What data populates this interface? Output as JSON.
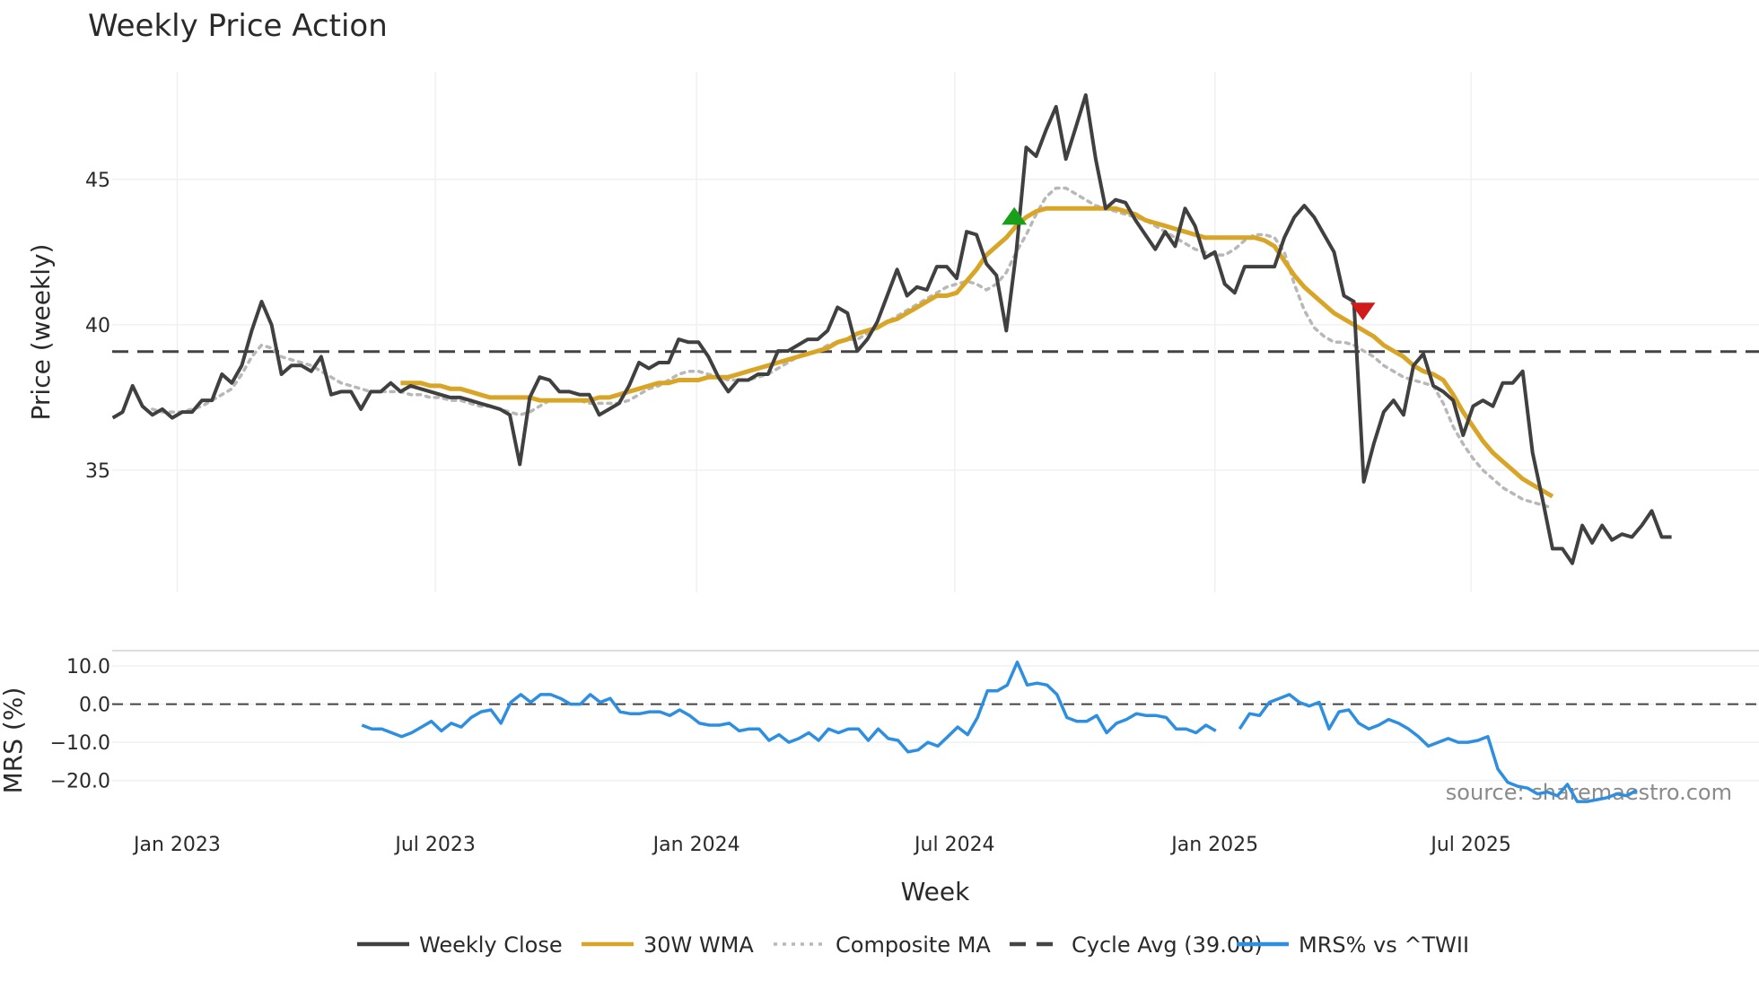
{
  "chart_data": [
    {
      "type": "line",
      "title": "Weekly Price Action",
      "xlabel": "Week",
      "ylabel": "Price (weekly)",
      "ylim": [
        30.8,
        48.7
      ],
      "yticks": [
        35,
        40,
        45
      ],
      "xticks": [
        {
          "label": "Jan 2023",
          "week": 4
        },
        {
          "label": "Jul 2023",
          "week": 30
        },
        {
          "label": "Jan 2024",
          "week": 56.3
        },
        {
          "label": "Jul 2024",
          "week": 82.3
        },
        {
          "label": "Jan 2025",
          "week": 108.5
        },
        {
          "label": "Jul 2025",
          "week": 134.3
        }
      ],
      "xlim": [
        -2.55,
        163.3
      ],
      "reference_line": {
        "name": "Cycle Avg (39.08)",
        "value": 39.08
      },
      "markers": [
        {
          "name": "buy-signal",
          "week": 88.3,
          "value": 43.7,
          "shape": "triangle-up",
          "color": "#1a9f1a"
        },
        {
          "name": "sell-signal",
          "week": 123.4,
          "value": 40.5,
          "shape": "triangle-down",
          "color": "#d11a1a"
        }
      ],
      "series": [
        {
          "name": "Weekly Close",
          "color": "#404040",
          "style": "solid",
          "x_start": -2.5,
          "values": [
            36.8,
            37.0,
            37.9,
            37.2,
            36.9,
            37.1,
            36.8,
            37.0,
            37.0,
            37.4,
            37.4,
            38.3,
            38.0,
            38.6,
            39.8,
            40.8,
            40.0,
            38.3,
            38.6,
            38.6,
            38.4,
            38.9,
            37.6,
            37.7,
            37.7,
            37.1,
            37.7,
            37.7,
            38.0,
            37.7,
            37.9,
            37.8,
            37.7,
            37.6,
            37.5,
            37.5,
            37.4,
            37.3,
            37.2,
            37.1,
            36.9,
            35.2,
            37.5,
            38.2,
            38.1,
            37.7,
            37.7,
            37.6,
            37.6,
            36.9,
            37.1,
            37.3,
            37.9,
            38.7,
            38.5,
            38.7,
            38.7,
            39.5,
            39.4,
            39.4,
            38.9,
            38.2,
            37.7,
            38.1,
            38.1,
            38.3,
            38.3,
            39.1,
            39.1,
            39.3,
            39.5,
            39.5,
            39.8,
            40.6,
            40.4,
            39.1,
            39.5,
            40.1,
            41.0,
            41.9,
            41.0,
            41.3,
            41.2,
            42.0,
            42.0,
            41.6,
            43.2,
            43.1,
            42.1,
            41.7,
            39.8,
            42.5,
            46.1,
            45.8,
            46.7,
            47.5,
            45.7,
            46.8,
            47.9,
            45.7,
            44.0,
            44.3,
            44.2,
            43.6,
            43.1,
            42.6,
            43.2,
            42.7,
            44.0,
            43.4,
            42.3,
            42.5,
            41.4,
            41.1,
            42.0,
            42.0,
            42.0,
            42.0,
            43.0,
            43.7,
            44.1,
            43.7,
            43.1,
            42.5,
            41.0,
            40.8,
            34.6,
            35.9,
            37.0,
            37.4,
            36.9,
            38.6,
            39.0,
            37.9,
            37.7,
            37.4,
            36.2,
            37.2,
            37.4,
            37.2,
            38.0,
            38.0,
            38.4,
            35.6,
            34.0,
            32.3,
            32.3,
            31.8,
            33.1,
            32.5,
            33.1,
            32.6,
            32.8,
            32.7,
            33.1,
            33.6,
            32.7,
            32.7
          ]
        },
        {
          "name": "30W WMA",
          "color": "#d8a527",
          "style": "solid",
          "x_start": 26.5,
          "values": [
            38.0,
            38.0,
            38.0,
            37.9,
            37.9,
            37.8,
            37.8,
            37.7,
            37.6,
            37.5,
            37.5,
            37.5,
            37.5,
            37.5,
            37.4,
            37.4,
            37.4,
            37.4,
            37.4,
            37.4,
            37.5,
            37.5,
            37.6,
            37.7,
            37.8,
            37.9,
            38.0,
            38.0,
            38.1,
            38.1,
            38.1,
            38.2,
            38.2,
            38.2,
            38.3,
            38.4,
            38.5,
            38.6,
            38.7,
            38.8,
            38.9,
            39.0,
            39.1,
            39.2,
            39.4,
            39.5,
            39.7,
            39.8,
            39.9,
            40.1,
            40.2,
            40.4,
            40.6,
            40.8,
            41.0,
            41.0,
            41.1,
            41.5,
            41.9,
            42.4,
            42.7,
            43.0,
            43.4,
            43.7,
            43.9,
            44.0,
            44.0,
            44.0,
            44.0,
            44.0,
            44.0,
            44.0,
            44.0,
            43.9,
            43.8,
            43.6,
            43.5,
            43.4,
            43.3,
            43.2,
            43.1,
            43.0,
            43.0,
            43.0,
            43.0,
            43.0,
            43.0,
            42.9,
            42.7,
            42.2,
            41.7,
            41.3,
            41.0,
            40.7,
            40.4,
            40.2,
            40.0,
            39.8,
            39.6,
            39.3,
            39.1,
            38.9,
            38.6,
            38.4,
            38.3,
            38.1,
            37.6,
            37.0,
            36.5,
            36.0,
            35.6,
            35.3,
            35.0,
            34.7,
            34.5,
            34.3,
            34.1
          ]
        },
        {
          "name": "Composite MA",
          "color": "#b8b8b8",
          "style": "dotted",
          "x_start": 1.5,
          "values": [
            37.1,
            37.0,
            37.0,
            37.0,
            37.1,
            37.2,
            37.4,
            37.6,
            37.8,
            38.3,
            38.9,
            39.3,
            39.2,
            38.9,
            38.8,
            38.7,
            38.6,
            38.4,
            38.2,
            38.0,
            37.9,
            37.8,
            37.7,
            37.7,
            37.7,
            37.7,
            37.6,
            37.6,
            37.5,
            37.5,
            37.4,
            37.4,
            37.3,
            37.2,
            37.2,
            37.1,
            37.0,
            36.9,
            37.0,
            37.2,
            37.4,
            37.4,
            37.4,
            37.4,
            37.3,
            37.3,
            37.3,
            37.3,
            37.4,
            37.6,
            37.8,
            37.9,
            38.1,
            38.3,
            38.4,
            38.4,
            38.3,
            38.2,
            38.1,
            38.1,
            38.1,
            38.2,
            38.3,
            38.5,
            38.7,
            38.9,
            39.0,
            39.1,
            39.3,
            39.4,
            39.5,
            39.5,
            39.7,
            39.9,
            40.1,
            40.3,
            40.5,
            40.7,
            40.9,
            41.1,
            41.3,
            41.4,
            41.5,
            41.4,
            41.2,
            41.4,
            41.8,
            42.5,
            43.1,
            43.8,
            44.4,
            44.7,
            44.7,
            44.5,
            44.3,
            44.1,
            44.0,
            43.9,
            43.8,
            43.7,
            43.6,
            43.4,
            43.2,
            43.0,
            42.8,
            42.6,
            42.5,
            42.4,
            42.4,
            42.6,
            42.9,
            43.1,
            43.1,
            43.0,
            42.5,
            41.4,
            40.5,
            39.9,
            39.6,
            39.4,
            39.4,
            39.3,
            39.1,
            38.9,
            38.6,
            38.4,
            38.2,
            38.1,
            38.0,
            37.9,
            37.3,
            36.5,
            35.9,
            35.4,
            35.0,
            34.7,
            34.4,
            34.2,
            34.0,
            33.9,
            33.8,
            33.7
          ]
        }
      ]
    },
    {
      "type": "line",
      "ylabel": "MRS (%)",
      "ylim": [
        -29,
        14
      ],
      "yticks": [
        {
          "value": 10,
          "label": "10.0"
        },
        {
          "value": 0,
          "label": "0.0"
        },
        {
          "value": -10,
          "label": "−10.0"
        },
        {
          "value": -20,
          "label": "−20.0"
        }
      ],
      "reference_line": {
        "value": 0
      },
      "series": [
        {
          "name": "MRS% vs ^TWII",
          "color": "#2e8fe0",
          "style": "solid",
          "segments": [
            {
              "x_start": 22.6,
              "values": [
                -5.5,
                -6.5,
                -6.5,
                -7.5,
                -8.5,
                -7.5,
                -6.0,
                -4.5,
                -7.0,
                -5.0,
                -6.0,
                -3.5,
                -2.0,
                -1.5,
                -5.0,
                0.5,
                2.5,
                0.5,
                2.5,
                2.5,
                1.5,
                0.0,
                0.0,
                2.5,
                0.5,
                1.5,
                -2.0,
                -2.5,
                -2.5,
                -2.0,
                -2.0,
                -3.0,
                -1.5,
                -3.0,
                -5.0,
                -5.5,
                -5.5,
                -5.0,
                -7.0,
                -6.5,
                -6.5,
                -9.5,
                -8.0,
                -10.0,
                -9.0,
                -7.5,
                -9.5,
                -6.5,
                -7.5,
                -6.5,
                -6.5,
                -9.5,
                -6.5,
                -9.0,
                -9.5,
                -12.5,
                -12.0,
                -10.0,
                -11.0,
                -8.5,
                -6.0,
                -8.0,
                -3.5,
                3.5,
                3.5,
                5.0,
                11.0,
                5.0,
                5.5,
                5.0,
                2.5,
                -3.5,
                -4.5,
                -4.5,
                -3.0,
                -7.5,
                -5.0,
                -4.0,
                -2.5,
                -3.0,
                -3.0,
                -3.5,
                -6.5,
                -6.5,
                -7.5,
                -5.5,
                -7.0
              ]
            },
            {
              "x_start": 111.0,
              "values": [
                -6.5,
                -2.5,
                -3.0,
                0.5,
                1.5,
                2.5,
                0.5,
                -0.5,
                0.5,
                -6.5,
                -2.0,
                -1.5,
                -5.0,
                -6.5,
                -5.5,
                -4.0,
                -5.0,
                -6.5,
                -8.5,
                -11.0,
                -10.0,
                -9.0,
                -10.0,
                -10.0,
                -9.5,
                -8.5,
                -17.0,
                -20.5,
                -21.5,
                -22.0,
                -23.5,
                -23.0,
                -24.0,
                -21.0,
                -25.5,
                -25.5,
                -25.0,
                -24.5,
                -23.5,
                -24.0,
                -22.5
              ]
            }
          ]
        }
      ]
    }
  ],
  "legend": [
    {
      "label": "Weekly Close",
      "color": "#404040",
      "style": "solid"
    },
    {
      "label": "30W WMA",
      "color": "#d8a527",
      "style": "solid"
    },
    {
      "label": "Composite MA",
      "color": "#b8b8b8",
      "style": "dotted"
    },
    {
      "label": "Cycle Avg (39.08)",
      "color": "#444444",
      "style": "dashed"
    },
    {
      "label": "MRS% vs ^TWII",
      "color": "#2e8fe0",
      "style": "solid"
    }
  ],
  "source": "source: sharemaestro.com"
}
